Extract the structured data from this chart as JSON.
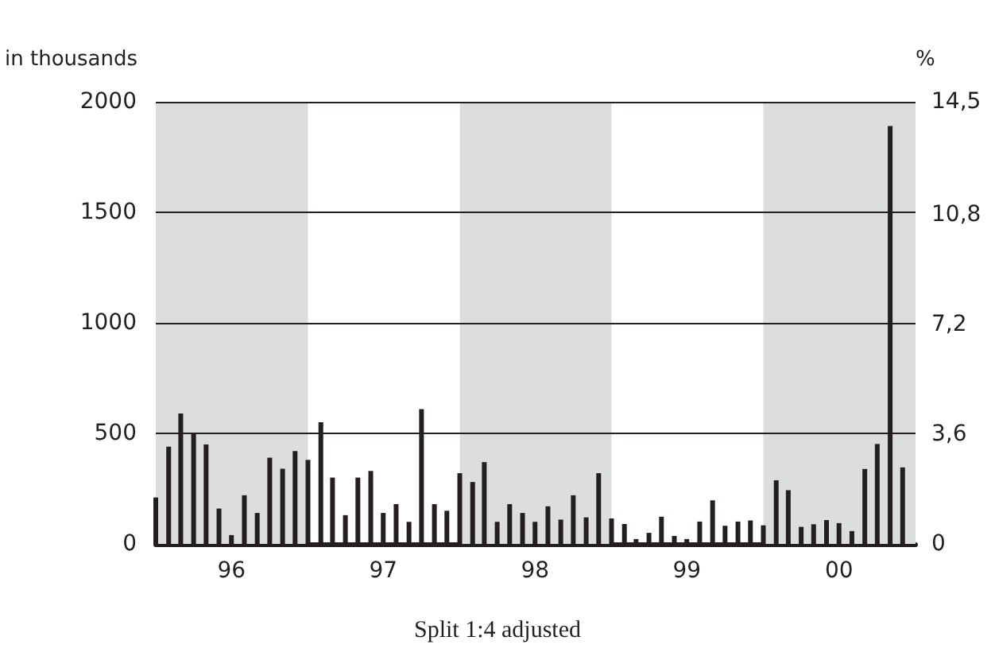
{
  "chart_data": {
    "type": "bar",
    "ylabel": "in thousands",
    "y2label": "%",
    "x": [
      "1996-01",
      "1996-02",
      "1996-03",
      "1996-04",
      "1996-05",
      "1996-06",
      "1996-07",
      "1996-08",
      "1996-09",
      "1996-10",
      "1996-11",
      "1996-12",
      "1997-01",
      "1997-02",
      "1997-03",
      "1997-04",
      "1997-05",
      "1997-06",
      "1997-07",
      "1997-08",
      "1997-09",
      "1997-10",
      "1997-11",
      "1997-12",
      "1998-01",
      "1998-02",
      "1998-03",
      "1998-04",
      "1998-05",
      "1998-06",
      "1998-07",
      "1998-08",
      "1998-09",
      "1998-10",
      "1998-11",
      "1998-12",
      "1999-01",
      "1999-02",
      "1999-03",
      "1999-04",
      "1999-05",
      "1999-06",
      "1999-07",
      "1999-08",
      "1999-09",
      "1999-10",
      "1999-11",
      "1999-12",
      "2000-01",
      "2000-02",
      "2000-03",
      "2000-04",
      "2000-05",
      "2000-06",
      "2000-07",
      "2000-08",
      "2000-09",
      "2000-10",
      "2000-11",
      "2000-12"
    ],
    "values": [
      210,
      440,
      590,
      500,
      450,
      160,
      40,
      220,
      140,
      390,
      340,
      420,
      380,
      550,
      300,
      130,
      300,
      330,
      140,
      180,
      100,
      610,
      180,
      150,
      320,
      280,
      370,
      100,
      180,
      140,
      100,
      170,
      110,
      220,
      120,
      320,
      115,
      90,
      22,
      50,
      123,
      36,
      22,
      101,
      197,
      82,
      101,
      106,
      84,
      288,
      243,
      77,
      89,
      108,
      94,
      58,
      339,
      452,
      1890,
      346
    ],
    "color": "#231f20",
    "xlim": [
      "1996-01",
      "2001-01"
    ],
    "xticks": [
      {
        "value": "1996-07",
        "label": "96"
      },
      {
        "value": "1997-07",
        "label": "97"
      },
      {
        "value": "1998-07",
        "label": "98"
      },
      {
        "value": "1999-07",
        "label": "99"
      },
      {
        "value": "2000-07",
        "label": "00"
      }
    ],
    "ylim": [
      0,
      2000
    ],
    "yticks": [
      0,
      500,
      1000,
      1500,
      2000
    ],
    "y2lim": [
      0,
      14.5
    ],
    "y2ticks": [
      {
        "value": 0,
        "label": "0"
      },
      {
        "value": 3.6,
        "label": "3,6"
      },
      {
        "value": 7.2,
        "label": "7,2"
      },
      {
        "value": 10.8,
        "label": "10,8"
      },
      {
        "value": 14.5,
        "label": "14,5"
      }
    ],
    "grid": "y",
    "bands": [
      {
        "axis": "x",
        "from": "1996-01",
        "to": "1997-01",
        "color": "#dcdddf"
      },
      {
        "axis": "x",
        "from": "1998-01",
        "to": "1999-01",
        "color": "#dcdddf"
      },
      {
        "axis": "x",
        "from": "2000-01",
        "to": "2001-01",
        "color": "#dcdddf"
      }
    ],
    "annotations": [
      "Split 1:4 adjusted"
    ]
  }
}
